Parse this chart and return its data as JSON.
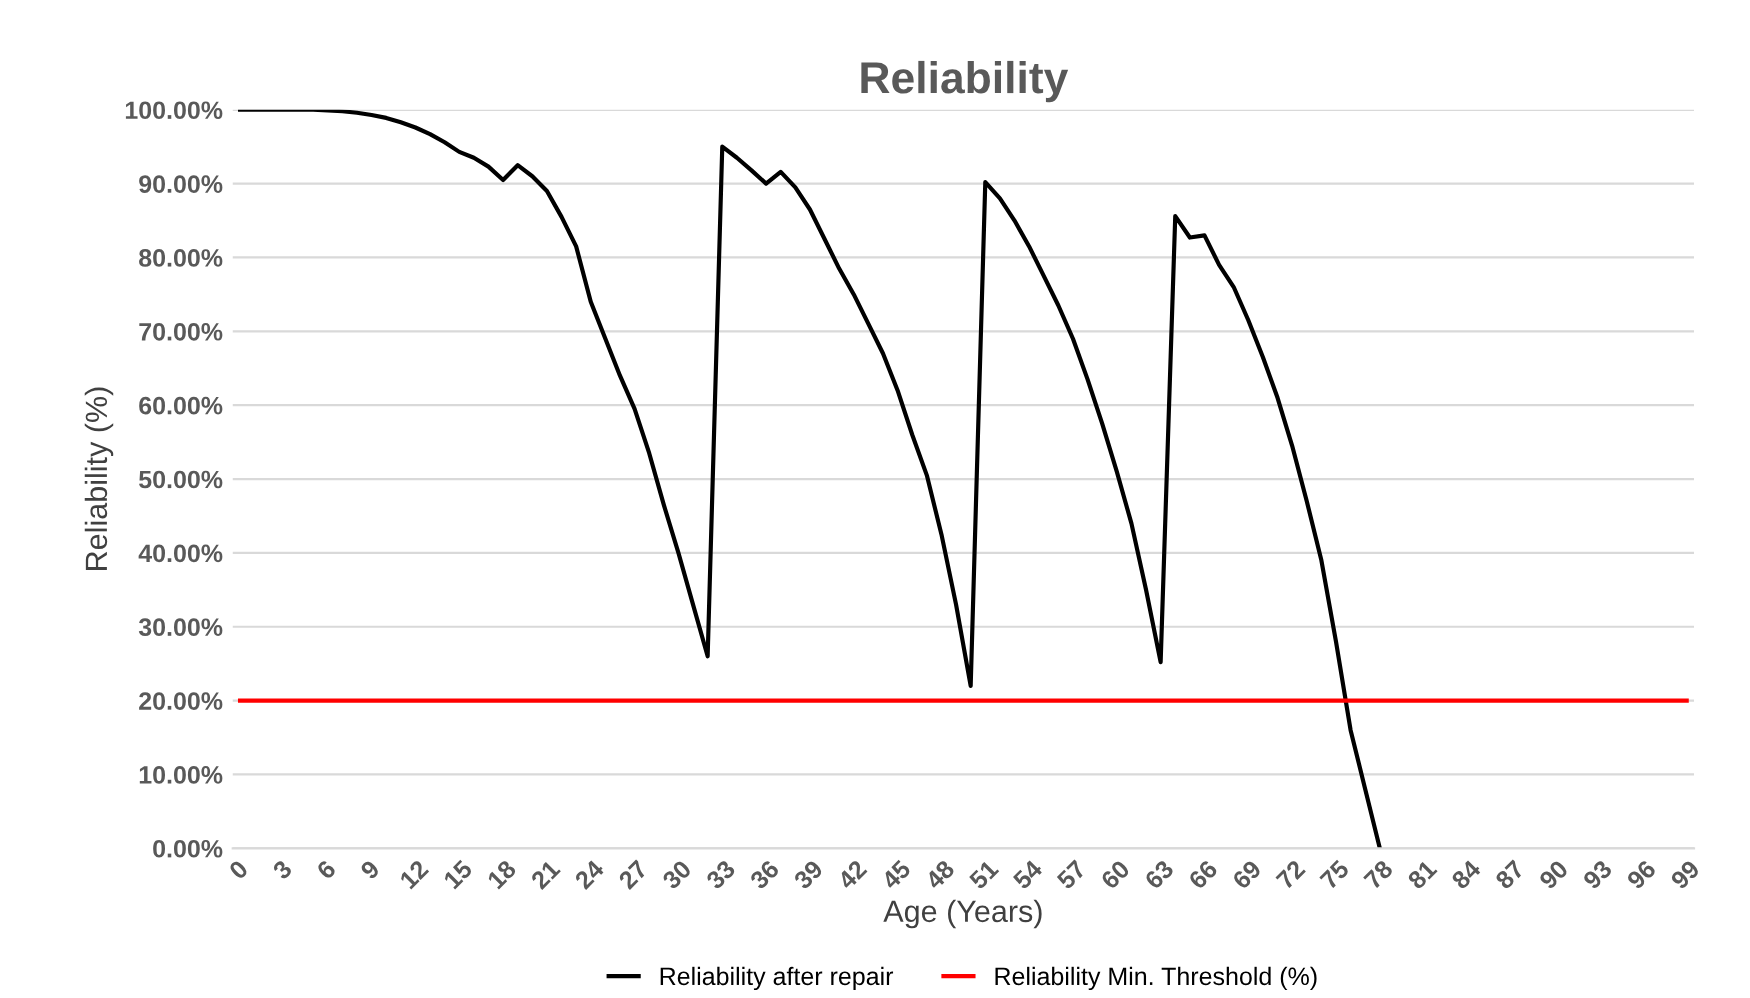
{
  "chart_data": {
    "type": "line",
    "title": "Reliability",
    "xlabel": "Age (Years)",
    "ylabel": "Reliability (%)",
    "categories": [
      "0",
      null,
      null,
      "3",
      null,
      null,
      "6",
      null,
      null,
      "9",
      null,
      null,
      "12",
      null,
      null,
      "15",
      null,
      null,
      "18",
      null,
      null,
      "21",
      null,
      null,
      "24",
      null,
      null,
      "27",
      null,
      null,
      "30",
      null,
      null,
      "33",
      null,
      null,
      "36",
      null,
      null,
      "39",
      null,
      null,
      "42",
      null,
      null,
      "45",
      null,
      null,
      "48",
      null,
      null,
      "51",
      null,
      null,
      "54",
      null,
      null,
      "57",
      null,
      null,
      "60",
      null,
      null,
      "63",
      null,
      null,
      "66",
      null,
      null,
      "69",
      null,
      null,
      "72",
      null,
      null,
      "75",
      null,
      null,
      "78",
      null,
      null,
      "81",
      null,
      null,
      "84",
      null,
      null,
      "87",
      null,
      null,
      "90",
      null,
      null,
      "93",
      null,
      null,
      "96",
      null,
      null,
      "99"
    ],
    "series": [
      {
        "name": "Reliability after repair",
        "color": "#000000",
        "values": [
          100,
          100,
          100,
          100,
          100,
          100,
          99.9,
          99.8,
          99.6,
          99.3,
          98.9,
          98.3,
          97.6,
          96.7,
          95.6,
          94.3,
          93.5,
          92.3,
          90.5,
          92.5,
          91,
          89,
          85.5,
          81.5,
          74,
          69,
          64,
          59.5,
          53.5,
          46.5,
          40,
          33,
          26,
          95,
          93.5,
          91.8,
          90,
          91.6,
          89.5,
          86.5,
          82.5,
          78.5,
          75,
          71,
          67,
          62,
          56,
          50.5,
          42.5,
          33,
          22,
          90.2,
          88,
          85,
          81.5,
          77.5,
          73.5,
          69,
          63.5,
          57.5,
          51,
          44,
          35,
          25.2,
          85.6,
          82.7,
          83,
          79,
          76,
          71.5,
          66.5,
          61,
          54.5,
          47,
          39,
          28,
          16,
          8,
          0,
          null,
          null,
          null,
          null,
          null,
          null,
          null,
          null,
          null,
          null,
          null,
          null,
          null,
          null,
          null,
          null,
          null,
          null,
          null,
          null,
          null
        ]
      },
      {
        "name": "Reliability Min. Threshold (%)",
        "color": "#ff0000",
        "values": [
          20,
          20,
          20,
          20,
          20,
          20,
          20,
          20,
          20,
          20,
          20,
          20,
          20,
          20,
          20,
          20,
          20,
          20,
          20,
          20,
          20,
          20,
          20,
          20,
          20,
          20,
          20,
          20,
          20,
          20,
          20,
          20,
          20,
          20,
          20,
          20,
          20,
          20,
          20,
          20,
          20,
          20,
          20,
          20,
          20,
          20,
          20,
          20,
          20,
          20,
          20,
          20,
          20,
          20,
          20,
          20,
          20,
          20,
          20,
          20,
          20,
          20,
          20,
          20,
          20,
          20,
          20,
          20,
          20,
          20,
          20,
          20,
          20,
          20,
          20,
          20,
          20,
          20,
          20,
          20,
          20,
          20,
          20,
          20,
          20,
          20,
          20,
          20,
          20,
          20,
          20,
          20,
          20,
          20,
          20,
          20,
          20,
          20,
          20,
          20
        ]
      }
    ],
    "ylim": [
      0,
      100
    ],
    "yticks": [
      {
        "value": 0,
        "label": "0.00%"
      },
      {
        "value": 10,
        "label": "10.00%"
      },
      {
        "value": 20,
        "label": "20.00%"
      },
      {
        "value": 30,
        "label": "30.00%"
      },
      {
        "value": 40,
        "label": "40.00%"
      },
      {
        "value": 50,
        "label": "50.00%"
      },
      {
        "value": 60,
        "label": "60.00%"
      },
      {
        "value": 70,
        "label": "70.00%"
      },
      {
        "value": 80,
        "label": "80.00%"
      },
      {
        "value": 90,
        "label": "90.00%"
      },
      {
        "value": 100,
        "label": "100.00%"
      }
    ],
    "grid": "y",
    "legend": "bottom",
    "marker": "none",
    "line_style": "solid"
  }
}
